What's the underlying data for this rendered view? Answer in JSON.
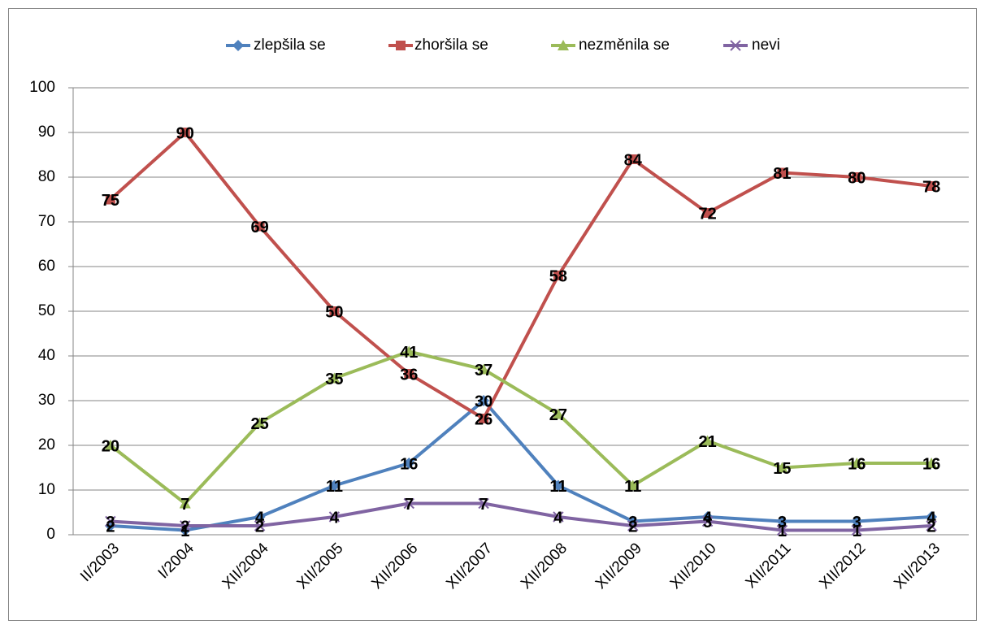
{
  "chart_data": {
    "type": "line",
    "categories": [
      "II/2003",
      "I/2004",
      "XII/2004",
      "XII/2005",
      "XII/2006",
      "XII/2007",
      "XII/2008",
      "XII/2009",
      "XII/2010",
      "XII/2011",
      "XII/2012",
      "XII/2013"
    ],
    "series": [
      {
        "name": "zlepšila se",
        "color": "#4f81bd",
        "marker": "diamond",
        "values": [
          2,
          1,
          4,
          11,
          16,
          30,
          11,
          3,
          4,
          3,
          3,
          4
        ]
      },
      {
        "name": "zhoršila se",
        "color": "#c0504d",
        "marker": "square",
        "values": [
          75,
          90,
          69,
          50,
          36,
          26,
          58,
          84,
          72,
          81,
          80,
          78
        ]
      },
      {
        "name": "nezměnila se",
        "color": "#9bbb59",
        "marker": "triangle",
        "values": [
          20,
          7,
          25,
          35,
          41,
          37,
          27,
          11,
          21,
          15,
          16,
          16
        ]
      },
      {
        "name": "nevi",
        "color": "#8064a2",
        "marker": "x",
        "values": [
          3,
          2,
          2,
          4,
          7,
          7,
          4,
          2,
          3,
          1,
          1,
          2
        ]
      }
    ],
    "ylim": [
      0,
      100
    ],
    "yticks": [
      0,
      10,
      20,
      30,
      40,
      50,
      60,
      70,
      80,
      90,
      100
    ],
    "grid": true,
    "legend": "top",
    "data_labels": true
  }
}
